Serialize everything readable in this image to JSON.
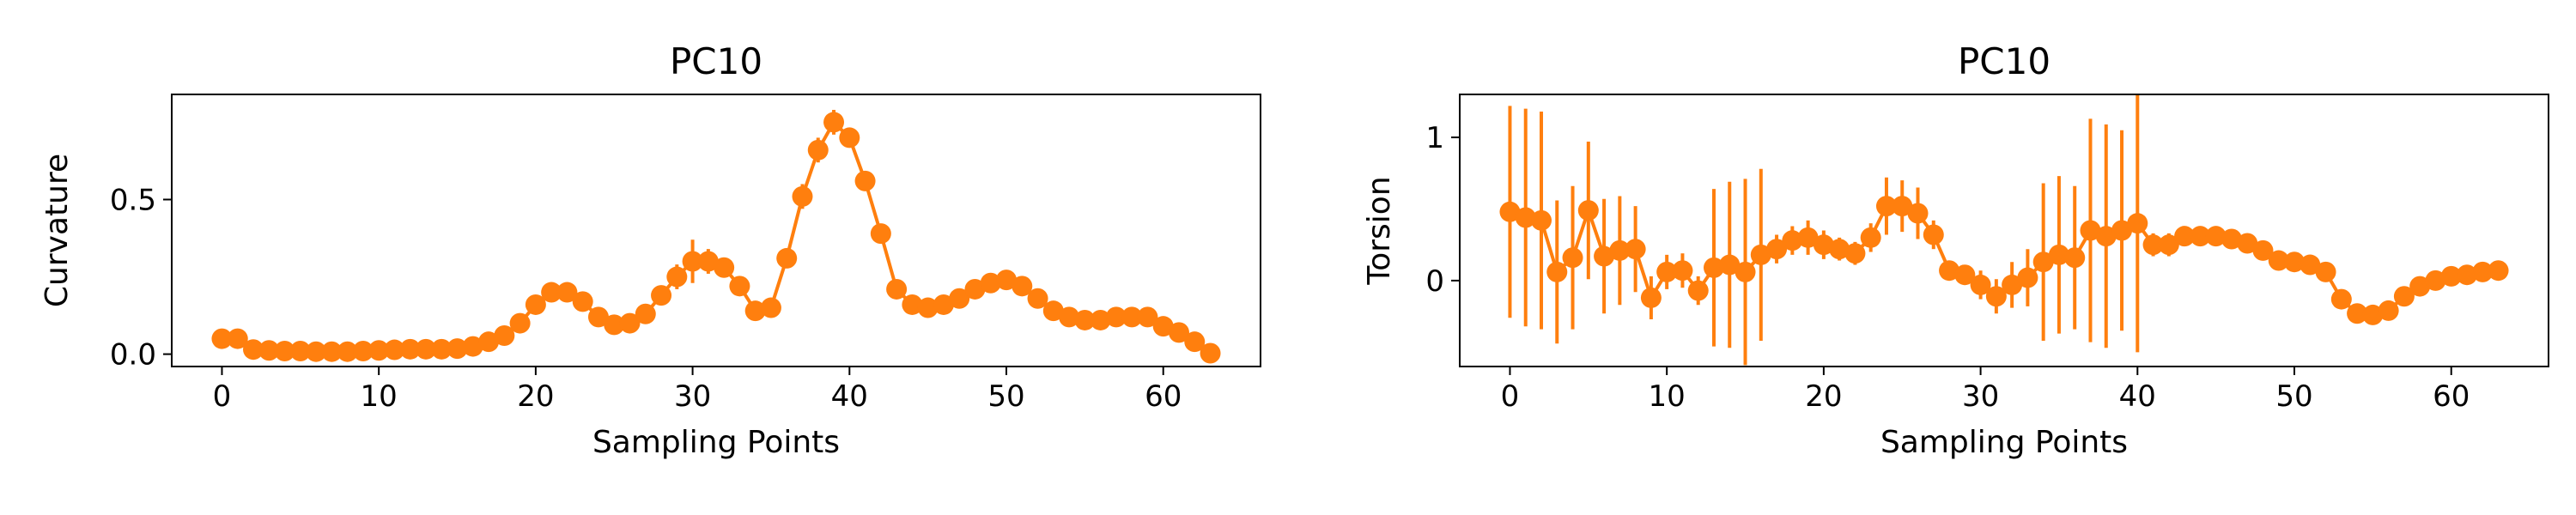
{
  "colors": {
    "series": "#ff7f0e",
    "axis": "#000000",
    "background": "#ffffff"
  },
  "chart_data": [
    {
      "type": "line",
      "title": "PC10",
      "xlabel": "Sampling Points",
      "ylabel": "Curvature",
      "xlim": [
        -3.2,
        66.2
      ],
      "ylim": [
        -0.04,
        0.84
      ],
      "xticks": [
        0,
        10,
        20,
        30,
        40,
        50,
        60
      ],
      "xtick_labels": [
        "0",
        "10",
        "20",
        "30",
        "40",
        "50",
        "60"
      ],
      "yticks": [
        0,
        0.5
      ],
      "ytick_labels": [
        "0.0",
        "0.5"
      ],
      "grid": false,
      "legend": false,
      "series": [
        {
          "x": [
            0,
            1,
            2,
            3,
            4,
            5,
            6,
            7,
            8,
            9,
            10,
            11,
            12,
            13,
            14,
            15,
            16,
            17,
            18,
            19,
            20,
            21,
            22,
            23,
            24,
            25,
            26,
            27,
            28,
            29,
            30,
            31,
            32,
            33,
            34,
            35,
            36,
            37,
            38,
            39,
            40,
            41,
            42,
            43,
            44,
            45,
            46,
            47,
            48,
            49,
            50,
            51,
            52,
            53,
            54,
            55,
            56,
            57,
            58,
            59,
            60,
            61,
            62,
            63
          ],
          "values": [
            0.05,
            0.05,
            0.015,
            0.012,
            0.01,
            0.01,
            0.008,
            0.008,
            0.008,
            0.01,
            0.012,
            0.014,
            0.016,
            0.016,
            0.016,
            0.018,
            0.025,
            0.04,
            0.06,
            0.1,
            0.16,
            0.2,
            0.2,
            0.17,
            0.12,
            0.095,
            0.1,
            0.13,
            0.19,
            0.25,
            0.3,
            0.3,
            0.28,
            0.22,
            0.14,
            0.15,
            0.31,
            0.51,
            0.66,
            0.75,
            0.7,
            0.56,
            0.39,
            0.21,
            0.16,
            0.15,
            0.16,
            0.18,
            0.21,
            0.23,
            0.24,
            0.22,
            0.18,
            0.14,
            0.12,
            0.11,
            0.11,
            0.12,
            0.12,
            0.12,
            0.09,
            0.07,
            0.04,
            0.003
          ],
          "errors": [
            0,
            0,
            0,
            0,
            0,
            0,
            0,
            0,
            0,
            0,
            0,
            0,
            0,
            0,
            0,
            0,
            0,
            0,
            0,
            0,
            0.02,
            0.02,
            0.02,
            0,
            0,
            0,
            0,
            0,
            0.02,
            0.04,
            0.07,
            0.04,
            0.02,
            0.02,
            0,
            0,
            0.02,
            0.04,
            0.04,
            0.04,
            0.02,
            0,
            0,
            0,
            0,
            0,
            0,
            0,
            0.02,
            0.02,
            0.02,
            0.02,
            0,
            0,
            0,
            0,
            0,
            0,
            0,
            0,
            0,
            0,
            0,
            0
          ]
        }
      ]
    },
    {
      "type": "line",
      "title": "PC10",
      "xlabel": "Sampling Points",
      "ylabel": "Torsion",
      "xlim": [
        -3.2,
        66.2
      ],
      "ylim": [
        -0.6,
        1.3
      ],
      "xticks": [
        0,
        10,
        20,
        30,
        40,
        50,
        60
      ],
      "xtick_labels": [
        "0",
        "10",
        "20",
        "30",
        "40",
        "50",
        "60"
      ],
      "yticks": [
        0,
        1
      ],
      "ytick_labels": [
        "0",
        "1"
      ],
      "grid": false,
      "legend": false,
      "series": [
        {
          "x": [
            0,
            1,
            2,
            3,
            4,
            5,
            6,
            7,
            8,
            9,
            10,
            11,
            12,
            13,
            14,
            15,
            16,
            17,
            18,
            19,
            20,
            21,
            22,
            23,
            24,
            25,
            26,
            27,
            28,
            29,
            30,
            31,
            32,
            33,
            34,
            35,
            36,
            37,
            38,
            39,
            40,
            41,
            42,
            43,
            44,
            45,
            46,
            47,
            48,
            49,
            50,
            51,
            52,
            53,
            54,
            55,
            56,
            57,
            58,
            59,
            60,
            61,
            62,
            63
          ],
          "values": [
            0.48,
            0.44,
            0.42,
            0.06,
            0.16,
            0.49,
            0.17,
            0.21,
            0.22,
            -0.12,
            0.06,
            0.07,
            -0.07,
            0.09,
            0.11,
            0.06,
            0.18,
            0.22,
            0.28,
            0.3,
            0.25,
            0.22,
            0.19,
            0.3,
            0.52,
            0.52,
            0.47,
            0.32,
            0.07,
            0.04,
            -0.03,
            -0.11,
            -0.03,
            0.02,
            0.13,
            0.18,
            0.16,
            0.35,
            0.31,
            0.35,
            0.4,
            0.25,
            0.25,
            0.31,
            0.31,
            0.31,
            0.29,
            0.26,
            0.21,
            0.14,
            0.13,
            0.11,
            0.06,
            -0.13,
            -0.23,
            -0.24,
            -0.21,
            -0.11,
            -0.04,
            0.0,
            0.03,
            0.04,
            0.06,
            0.07
          ],
          "errors": [
            0.74,
            0.76,
            0.76,
            0.5,
            0.5,
            0.48,
            0.4,
            0.38,
            0.3,
            0.15,
            0.12,
            0.12,
            0.1,
            0.55,
            0.58,
            0.65,
            0.6,
            0.1,
            0.1,
            0.12,
            0.1,
            0.08,
            0.08,
            0.1,
            0.2,
            0.18,
            0.18,
            0.1,
            0.06,
            0.06,
            0.1,
            0.12,
            0.16,
            0.2,
            0.55,
            0.55,
            0.5,
            0.78,
            0.78,
            0.7,
            0.9,
            0.08,
            0.08,
            0.06,
            0.06,
            0.06,
            0.06,
            0.06,
            0.06,
            0.05,
            0.05,
            0.05,
            0.05,
            0.06,
            0.06,
            0.06,
            0.05,
            0.05,
            0.04,
            0.04,
            0.04,
            0.04,
            0.04,
            0.04
          ]
        }
      ]
    }
  ]
}
